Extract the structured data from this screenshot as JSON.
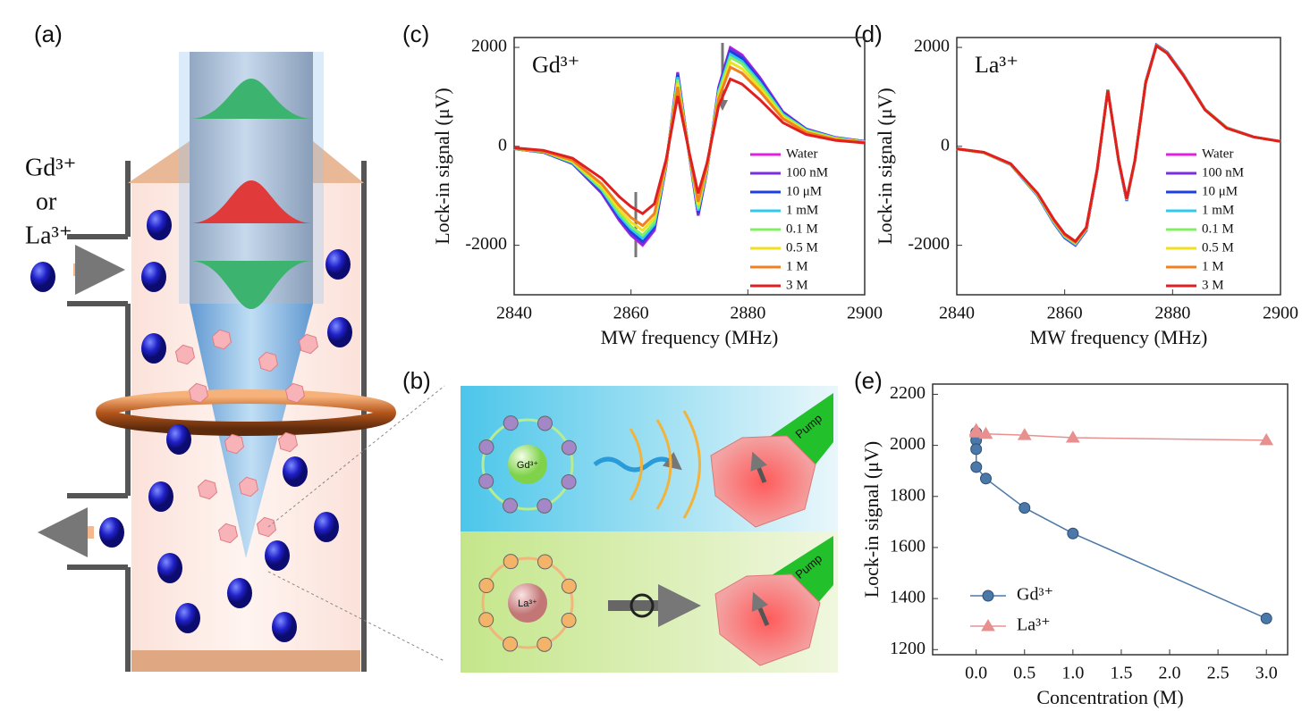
{
  "panels": [
    "(a)",
    "(b)",
    "(c)",
    "(d)",
    "(e)"
  ],
  "diagram": {
    "ion_gd": "Gd³⁺",
    "or": "or",
    "ion_la": "La³⁺",
    "b_gd": "Gd³⁺",
    "b_la": "La³⁺",
    "pump_top": "Pump",
    "pump_bottom": "Pump"
  },
  "chart_data": [
    {
      "type": "line",
      "annotation": "Gd³⁺",
      "xlabel": "MW frequency (MHz)",
      "ylabel": "Lock-in signal (μV)",
      "x": [
        2840,
        2845,
        2850,
        2855,
        2858,
        2860,
        2862,
        2864,
        2866,
        2868,
        2870,
        2871.5,
        2873,
        2875,
        2877,
        2879,
        2882,
        2886,
        2890,
        2895,
        2900
      ],
      "xlim": [
        2840,
        2900
      ],
      "xticks": [
        2840,
        2860,
        2880,
        2900
      ],
      "ylim": [
        -3000,
        2200
      ],
      "yticks": [
        -2000,
        0,
        2000
      ],
      "legend": "lower right",
      "series": [
        {
          "name": "Water",
          "color": "#e020e0",
          "values": [
            -50,
            -120,
            -350,
            -950,
            -1500,
            -1800,
            -2000,
            -1700,
            -400,
            1500,
            -200,
            -1400,
            -500,
            1200,
            2000,
            1850,
            1400,
            700,
            350,
            180,
            100
          ]
        },
        {
          "name": "100 nM",
          "color": "#7a2ee0",
          "values": [
            -50,
            -120,
            -350,
            -940,
            -1490,
            -1780,
            -1980,
            -1680,
            -400,
            1490,
            -200,
            -1390,
            -500,
            1190,
            1980,
            1830,
            1390,
            690,
            350,
            180,
            100
          ]
        },
        {
          "name": "10 μM",
          "color": "#1e3fe0",
          "values": [
            -50,
            -120,
            -340,
            -910,
            -1440,
            -1730,
            -1920,
            -1630,
            -380,
            1440,
            -190,
            -1340,
            -480,
            1150,
            1920,
            1780,
            1340,
            670,
            340,
            170,
            100
          ]
        },
        {
          "name": "1 mM",
          "color": "#30c8f0",
          "values": [
            -50,
            -110,
            -330,
            -880,
            -1400,
            -1670,
            -1860,
            -1580,
            -370,
            1400,
            -190,
            -1300,
            -470,
            1120,
            1860,
            1720,
            1300,
            650,
            330,
            170,
            90
          ]
        },
        {
          "name": "0.1 M",
          "color": "#80f060",
          "values": [
            -50,
            -110,
            -320,
            -860,
            -1350,
            -1620,
            -1800,
            -1530,
            -360,
            1350,
            -180,
            -1260,
            -450,
            1080,
            1800,
            1670,
            1260,
            630,
            320,
            160,
            90
          ]
        },
        {
          "name": "0.5 M",
          "color": "#f0e020",
          "values": [
            -40,
            -100,
            -300,
            -810,
            -1280,
            -1530,
            -1700,
            -1450,
            -340,
            1280,
            -170,
            -1190,
            -430,
            1020,
            1700,
            1570,
            1190,
            600,
            300,
            150,
            90
          ]
        },
        {
          "name": "1 M",
          "color": "#f08020",
          "values": [
            -40,
            -100,
            -280,
            -760,
            -1200,
            -1440,
            -1600,
            -1360,
            -320,
            1200,
            -160,
            -1120,
            -400,
            960,
            1600,
            1480,
            1120,
            560,
            280,
            140,
            80
          ]
        },
        {
          "name": "3 M",
          "color": "#e02020",
          "values": [
            -30,
            -80,
            -240,
            -650,
            -1020,
            -1220,
            -1360,
            -1160,
            -270,
            1020,
            -140,
            -950,
            -340,
            820,
            1360,
            1260,
            950,
            480,
            240,
            120,
            70
          ]
        }
      ]
    },
    {
      "type": "line",
      "annotation": "La³⁺",
      "xlabel": "MW frequency (MHz)",
      "ylabel": "Lock-in signal (μV)",
      "x": [
        2840,
        2845,
        2850,
        2855,
        2858,
        2860,
        2862,
        2864,
        2866,
        2868,
        2870,
        2871.5,
        2873,
        2875,
        2877,
        2879,
        2882,
        2886,
        2890,
        2895,
        2900
      ],
      "xlim": [
        2840,
        2900
      ],
      "xticks": [
        2840,
        2860,
        2880,
        2900
      ],
      "ylim": [
        -3000,
        2200
      ],
      "yticks": [
        -2000,
        0,
        2000
      ],
      "legend": "lower right",
      "series": [
        {
          "name": "Water",
          "color": "#e020e0",
          "values": [
            -50,
            -130,
            -370,
            -1000,
            -1550,
            -1850,
            -2000,
            -1700,
            -500,
            1150,
            -300,
            -1100,
            -300,
            1300,
            2050,
            1900,
            1450,
            750,
            380,
            190,
            100
          ]
        },
        {
          "name": "100 nM",
          "color": "#7a2ee0",
          "values": [
            -50,
            -130,
            -370,
            -1000,
            -1550,
            -1850,
            -2000,
            -1700,
            -500,
            1150,
            -300,
            -1100,
            -300,
            1300,
            2050,
            1900,
            1450,
            750,
            380,
            190,
            100
          ]
        },
        {
          "name": "10 μM",
          "color": "#1e3fe0",
          "values": [
            -50,
            -130,
            -370,
            -1000,
            -1550,
            -1840,
            -1990,
            -1690,
            -500,
            1150,
            -300,
            -1100,
            -300,
            1300,
            2050,
            1900,
            1450,
            750,
            380,
            190,
            100
          ]
        },
        {
          "name": "1 mM",
          "color": "#30c8f0",
          "values": [
            -50,
            -130,
            -370,
            -990,
            -1540,
            -1830,
            -1980,
            -1680,
            -490,
            1150,
            -290,
            -1090,
            -300,
            1300,
            2040,
            1890,
            1450,
            750,
            380,
            190,
            100
          ]
        },
        {
          "name": "0.1 M",
          "color": "#80f060",
          "values": [
            -50,
            -130,
            -360,
            -980,
            -1520,
            -1810,
            -1960,
            -1670,
            -490,
            1140,
            -290,
            -1080,
            -300,
            1290,
            2040,
            1890,
            1440,
            750,
            380,
            190,
            100
          ]
        },
        {
          "name": "0.5 M",
          "color": "#f0e020",
          "values": [
            -50,
            -130,
            -360,
            -970,
            -1510,
            -1800,
            -1950,
            -1660,
            -480,
            1140,
            -290,
            -1070,
            -300,
            1290,
            2030,
            1880,
            1440,
            740,
            370,
            190,
            100
          ]
        },
        {
          "name": "1 M",
          "color": "#f08020",
          "values": [
            -50,
            -120,
            -360,
            -960,
            -1500,
            -1790,
            -1940,
            -1650,
            -480,
            1140,
            -290,
            -1070,
            -290,
            1290,
            2030,
            1880,
            1440,
            740,
            370,
            190,
            100
          ]
        },
        {
          "name": "3 M",
          "color": "#e02020",
          "values": [
            -50,
            -120,
            -350,
            -950,
            -1480,
            -1770,
            -1920,
            -1640,
            -470,
            1130,
            -280,
            -1060,
            -290,
            1280,
            2030,
            1880,
            1430,
            740,
            370,
            190,
            100
          ]
        }
      ]
    },
    {
      "type": "line",
      "markers": true,
      "xlabel": "Concentration (M)",
      "ylabel": "Lock-in signal (μV)",
      "x": [
        0,
        1e-07,
        1e-05,
        0.001,
        0.1,
        0.5,
        1,
        3
      ],
      "xlim": [
        -0.45,
        3.22
      ],
      "xticks": [
        {
          "value": 0,
          "label": "0.0"
        },
        {
          "value": 0.5,
          "label": "0.5"
        },
        {
          "value": 1,
          "label": "1.0"
        },
        {
          "value": 1.5,
          "label": "1.5"
        },
        {
          "value": 2,
          "label": "2.0"
        },
        {
          "value": 2.5,
          "label": "2.5"
        },
        {
          "value": 3,
          "label": "3.0"
        }
      ],
      "ylim": [
        1180,
        2240
      ],
      "yticks": [
        1200,
        1400,
        1600,
        1800,
        2000,
        2200
      ],
      "legend": "lower left",
      "series": [
        {
          "name": "Gd³⁺",
          "color": "#4a78a8",
          "marker": "circle",
          "values": [
            2050,
            2020,
            1985,
            1915,
            1870,
            1755,
            1655,
            1322
          ]
        },
        {
          "name": "La³⁺",
          "color": "#e89090",
          "marker": "triangle",
          "values": [
            2060,
            2055,
            2055,
            2050,
            2045,
            2040,
            2030,
            2020
          ]
        }
      ]
    }
  ]
}
